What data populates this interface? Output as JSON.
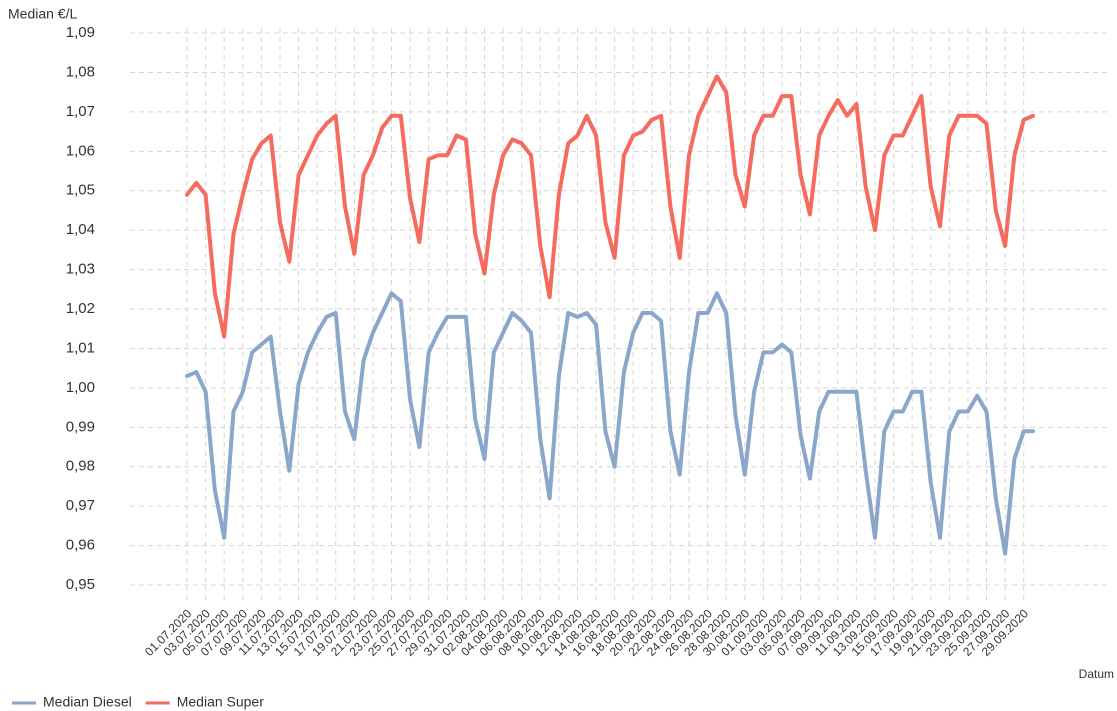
{
  "chart_data": {
    "type": "line",
    "y_label": "Median €/L",
    "x_label": "Datum",
    "categories": [
      "01.07.2020",
      null,
      "03.07.2020",
      null,
      "05.07.2020",
      null,
      "07.07.2020",
      null,
      "09.07.2020",
      null,
      "11.07.2020",
      null,
      "13.07.2020",
      null,
      "15.07.2020",
      null,
      "17.07.2020",
      null,
      "19.07.2020",
      null,
      "21.07.2020",
      null,
      "23.07.2020",
      null,
      "25.07.2020",
      null,
      "27.07.2020",
      null,
      "29.07.2020",
      null,
      "31.07.2020",
      null,
      "02.08.2020",
      null,
      "04.08.2020",
      null,
      "06.08.2020",
      null,
      "08.08.2020",
      null,
      "10.08.2020",
      null,
      "12.08.2020",
      null,
      "14.08.2020",
      null,
      "16.08.2020",
      null,
      "18.08.2020",
      null,
      "20.08.2020",
      null,
      "22.08.2020",
      null,
      "24.08.2020",
      null,
      "26.08.2020",
      null,
      "28.08.2020",
      null,
      "30.08.2020",
      null,
      "01.09.2020",
      null,
      "03.09.2020",
      null,
      "05.09.2020",
      null,
      "07.09.2020",
      null,
      "09.09.2020",
      null,
      "11.09.2020",
      null,
      "13.09.2020",
      null,
      "15.09.2020",
      null,
      "17.09.2020",
      null,
      "19.09.2020",
      null,
      "21.09.2020",
      null,
      "23.09.2020",
      null,
      "25.09.2020",
      null,
      "27.09.2020",
      null,
      "29.09.2020",
      null
    ],
    "series": [
      {
        "name": "Median Diesel",
        "color": "#8aa6cb",
        "values": [
          1.003,
          1.004,
          0.999,
          0.974,
          0.962,
          0.994,
          0.999,
          1.009,
          1.011,
          1.013,
          0.994,
          0.979,
          1.001,
          1.009,
          1.014,
          1.018,
          1.019,
          0.994,
          0.987,
          1.007,
          1.014,
          1.019,
          1.024,
          1.022,
          0.997,
          0.985,
          1.009,
          1.014,
          1.018,
          1.018,
          1.018,
          0.992,
          0.982,
          1.009,
          1.014,
          1.019,
          1.017,
          1.014,
          0.987,
          0.972,
          1.003,
          1.019,
          1.018,
          1.019,
          1.016,
          0.989,
          0.98,
          1.004,
          1.014,
          1.019,
          1.019,
          1.017,
          0.989,
          0.978,
          1.004,
          1.019,
          1.019,
          1.024,
          1.019,
          0.993,
          0.978,
          0.999,
          1.009,
          1.009,
          1.011,
          1.009,
          0.988,
          0.977,
          0.994,
          0.999,
          0.999,
          0.999,
          0.999,
          0.979,
          0.962,
          0.989,
          0.994,
          0.994,
          0.999,
          0.999,
          0.976,
          0.962,
          0.989,
          0.994,
          0.994,
          0.998,
          0.994,
          0.972,
          0.958,
          0.982,
          0.989,
          0.989
        ]
      },
      {
        "name": "Median Super",
        "color": "#f56b5e",
        "values": [
          1.049,
          1.052,
          1.049,
          1.024,
          1.013,
          1.039,
          1.049,
          1.058,
          1.062,
          1.064,
          1.042,
          1.032,
          1.054,
          1.059,
          1.064,
          1.067,
          1.069,
          1.046,
          1.034,
          1.054,
          1.059,
          1.066,
          1.069,
          1.069,
          1.048,
          1.037,
          1.058,
          1.059,
          1.059,
          1.064,
          1.063,
          1.039,
          1.029,
          1.049,
          1.059,
          1.063,
          1.062,
          1.059,
          1.036,
          1.023,
          1.049,
          1.062,
          1.064,
          1.069,
          1.064,
          1.042,
          1.033,
          1.059,
          1.064,
          1.065,
          1.068,
          1.069,
          1.046,
          1.033,
          1.059,
          1.069,
          1.074,
          1.079,
          1.075,
          1.054,
          1.046,
          1.064,
          1.069,
          1.069,
          1.074,
          1.074,
          1.054,
          1.044,
          1.064,
          1.069,
          1.073,
          1.069,
          1.072,
          1.051,
          1.04,
          1.059,
          1.064,
          1.064,
          1.069,
          1.074,
          1.051,
          1.041,
          1.064,
          1.069,
          1.069,
          1.069,
          1.067,
          1.045,
          1.036,
          1.059,
          1.068,
          1.069
        ]
      }
    ],
    "ylim": [
      0.946,
      1.093
    ],
    "yticks": [
      {
        "value": 0.95,
        "label": "0,95"
      },
      {
        "value": 0.96,
        "label": "0,96"
      },
      {
        "value": 0.97,
        "label": "0,97"
      },
      {
        "value": 0.98,
        "label": "0,98"
      },
      {
        "value": 0.99,
        "label": "0,99"
      },
      {
        "value": 1.0,
        "label": "1,00"
      },
      {
        "value": 1.01,
        "label": "1,01"
      },
      {
        "value": 1.02,
        "label": "1,02"
      },
      {
        "value": 1.03,
        "label": "1,03"
      },
      {
        "value": 1.04,
        "label": "1,04"
      },
      {
        "value": 1.05,
        "label": "1,05"
      },
      {
        "value": 1.06,
        "label": "1,06"
      },
      {
        "value": 1.07,
        "label": "1,07"
      },
      {
        "value": 1.08,
        "label": "1,08"
      },
      {
        "value": 1.09,
        "label": "1,09"
      }
    ],
    "grid": true,
    "legend": "bottom-left"
  }
}
